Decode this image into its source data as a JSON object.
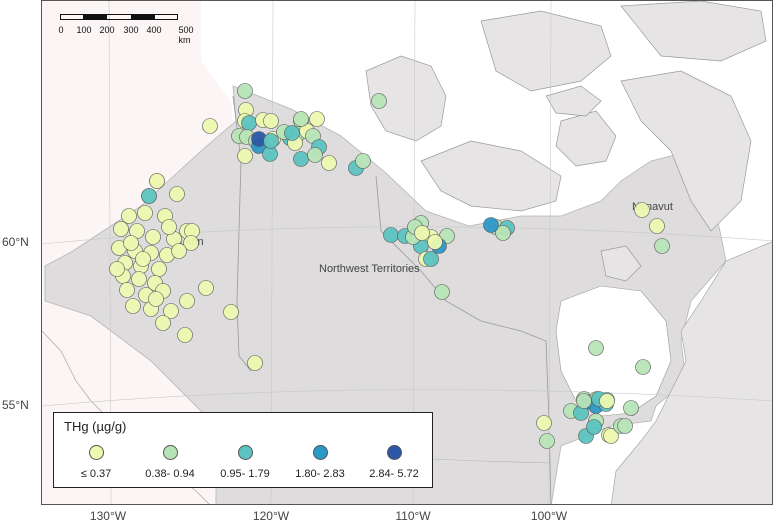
{
  "map": {
    "legend_title": "THg (µg/g)",
    "legend": [
      {
        "label": "≤ 0.37",
        "color": "#edf8b1"
      },
      {
        "label": "0.38- 0.94",
        "color": "#b7e4b6"
      },
      {
        "label": "0.95- 1.79",
        "color": "#5cc3c0"
      },
      {
        "label": "1.80- 2.83",
        "color": "#2c98c6"
      },
      {
        "label": "2.84- 5.72",
        "color": "#2c56a8"
      }
    ],
    "scale_bar": {
      "labels": [
        "0",
        "100",
        "200",
        "300",
        "400",
        "500 km"
      ]
    },
    "lat_labels": [
      "60°N",
      "55°N"
    ],
    "lon_labels": [
      "130°W",
      "120°W",
      "110°W",
      "100°W"
    ],
    "regions": [
      "Yukon",
      "Northwest Territories",
      "Nunavut"
    ],
    "colors": {
      "land": "#e6e4e4",
      "study_region": "#dedcdc",
      "water": "#ffffff",
      "outline": "#9a9a9a"
    },
    "point_sites": [
      {
        "class": 1
      },
      {
        "class": 1
      },
      {
        "class": 1
      },
      {
        "class": 1
      },
      {
        "class": 1
      },
      {
        "class": 1
      },
      {
        "class": 1
      },
      {
        "class": 1
      },
      {
        "class": 1
      },
      {
        "class": 1
      },
      {
        "class": 1
      },
      {
        "class": 1
      },
      {
        "class": 1
      },
      {
        "class": 1
      },
      {
        "class": 1
      },
      {
        "class": 1
      },
      {
        "class": 1
      },
      {
        "class": 1
      },
      {
        "class": 1
      },
      {
        "class": 1
      },
      {
        "class": 1
      },
      {
        "class": 1
      },
      {
        "class": 1
      },
      {
        "class": 1
      },
      {
        "class": 1
      },
      {
        "class": 1
      },
      {
        "class": 1
      },
      {
        "class": 1
      },
      {
        "class": 1
      },
      {
        "class": 1
      },
      {
        "class": 1
      },
      {
        "class": 1
      },
      {
        "class": 1
      },
      {
        "class": 1
      },
      {
        "class": 1
      },
      {
        "class": 1
      },
      {
        "class": 1
      },
      {
        "class": 1
      },
      {
        "class": 1
      },
      {
        "class": 1
      },
      {
        "class": 1
      },
      {
        "class": 1
      },
      {
        "class": 2
      },
      {
        "class": 1
      },
      {
        "class": 1
      },
      {
        "class": 3
      },
      {
        "class": 1
      },
      {
        "class": 1
      },
      {
        "class": 2
      },
      {
        "class": 1
      },
      {
        "class": 2
      },
      {
        "class": 1
      },
      {
        "class": 3
      },
      {
        "class": 1
      },
      {
        "class": 1
      },
      {
        "class": 2
      },
      {
        "class": 1
      },
      {
        "class": 4
      },
      {
        "class": 5
      },
      {
        "class": 3
      },
      {
        "class": 3
      },
      {
        "class": 2
      },
      {
        "class": 3
      },
      {
        "class": 1
      },
      {
        "class": 2
      },
      {
        "class": 3
      },
      {
        "class": 3
      },
      {
        "class": 2
      },
      {
        "class": 1
      },
      {
        "class": 3
      },
      {
        "class": 2
      },
      {
        "class": 2
      },
      {
        "class": 3
      },
      {
        "class": 3
      },
      {
        "class": 2
      },
      {
        "class": 1
      },
      {
        "class": 2
      },
      {
        "class": 4
      },
      {
        "class": 3
      },
      {
        "class": 2
      },
      {
        "class": 2
      },
      {
        "class": 1
      },
      {
        "class": 3
      },
      {
        "class": 2
      },
      {
        "class": 1
      },
      {
        "class": 1
      },
      {
        "class": 2
      },
      {
        "class": 3
      },
      {
        "class": 2
      },
      {
        "class": 1
      },
      {
        "class": 1
      },
      {
        "class": 2
      },
      {
        "class": 1
      },
      {
        "class": 2
      },
      {
        "class": 2
      },
      {
        "class": 2
      },
      {
        "class": 4
      },
      {
        "class": 2
      },
      {
        "class": 3
      },
      {
        "class": 4
      },
      {
        "class": 2
      },
      {
        "class": 3
      },
      {
        "class": 3
      },
      {
        "class": 3
      },
      {
        "class": 3
      },
      {
        "class": 1
      },
      {
        "class": 1
      },
      {
        "class": 2
      },
      {
        "class": 2
      },
      {
        "class": 2
      },
      {
        "class": 2
      },
      {
        "class": 2
      },
      {
        "class": 2
      },
      {
        "class": 2
      },
      {
        "class": 4
      },
      {
        "class": 2
      },
      {
        "class": 3
      },
      {
        "class": 1
      },
      {
        "class": 1
      },
      {
        "class": 3
      }
    ]
  }
}
